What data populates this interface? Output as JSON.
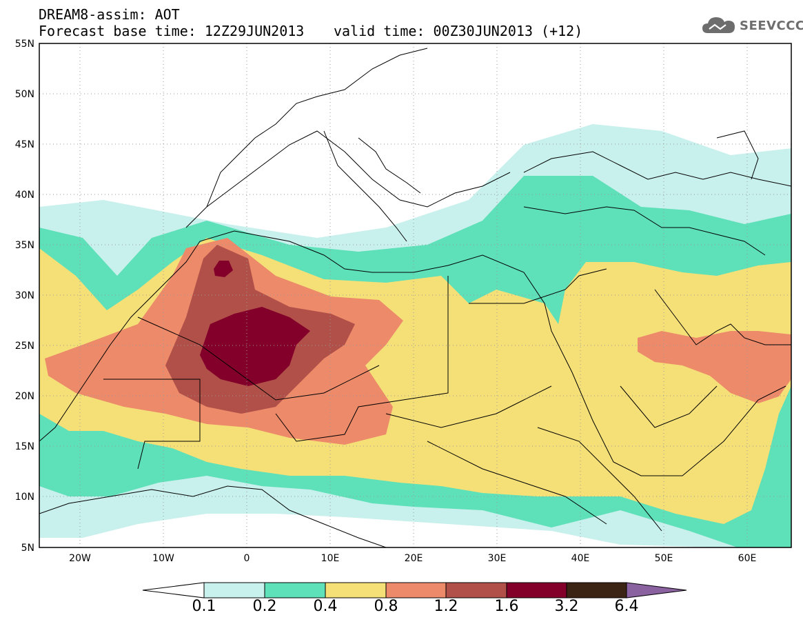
{
  "title": {
    "line1": "DREAM8-assim: AOT",
    "base": "Forecast base time: 12Z29JUN2013",
    "valid": "valid time: 00Z30JUN2013 (+12)"
  },
  "logo": {
    "text": "SEEVCCC",
    "icon": "cloud-icon"
  },
  "map": {
    "lat_labels": [
      "55N",
      "50N",
      "45N",
      "40N",
      "35N",
      "30N",
      "25N",
      "20N",
      "15N",
      "10N",
      "5N"
    ],
    "lon_labels": [
      "20W",
      "10W",
      "0",
      "10E",
      "20E",
      "30E",
      "40E",
      "50E",
      "60E"
    ]
  },
  "colorbar": {
    "labels": [
      "0.1",
      "0.2",
      "0.4",
      "0.8",
      "1.2",
      "1.6",
      "3.2",
      "6.4"
    ],
    "colors": [
      "#c8f0ec",
      "#5ee0b8",
      "#f5e078",
      "#ec8a6a",
      "#b05048",
      "#82002a",
      "#3c2414",
      "#8a62a0"
    ]
  }
}
